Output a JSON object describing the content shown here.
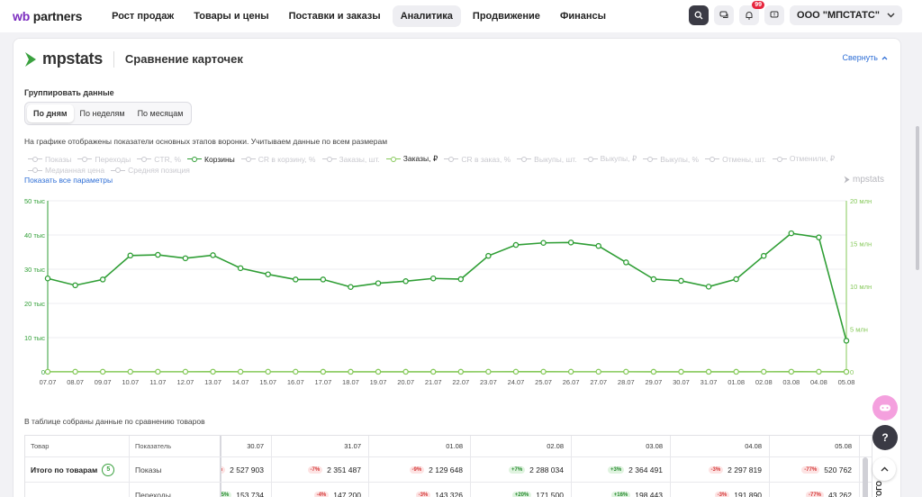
{
  "topnav": {
    "logo_wb": "wb",
    "logo_partners": "partners",
    "items": [
      "Рост продаж",
      "Товары и цены",
      "Поставки и заказы",
      "Аналитика",
      "Продвижение",
      "Финансы"
    ],
    "active_index": 3,
    "notifications_count": "99",
    "org_name": "ООО \"МПСТАТС\""
  },
  "card": {
    "brand": "mpstats",
    "title": "Сравнение карточек",
    "collapse_label": "Свернуть",
    "group_label": "Группировать данные",
    "group_options": [
      "По дням",
      "По неделям",
      "По месяцам"
    ],
    "group_active": 0,
    "info_text": "На графике отображены показатели основных этапов воронки. Учитываем данные по всем размерам",
    "show_all": "Показать все параметры",
    "watermark": "mpstats"
  },
  "legend": [
    {
      "label": "Показы",
      "state": "off"
    },
    {
      "label": "Переходы",
      "state": "off"
    },
    {
      "label": "CTR, %",
      "state": "off"
    },
    {
      "label": "Корзины",
      "state": "on-dark"
    },
    {
      "label": "CR в корзину, %",
      "state": "off"
    },
    {
      "label": "Заказы, шт.",
      "state": "off"
    },
    {
      "label": "Заказы, ₽",
      "state": "on-light"
    },
    {
      "label": "CR в заказ, %",
      "state": "off"
    },
    {
      "label": "Выкупы, шт.",
      "state": "off"
    },
    {
      "label": "Выкупы, ₽",
      "state": "off"
    },
    {
      "label": "Выкупы, %",
      "state": "off"
    },
    {
      "label": "Отмены, шт.",
      "state": "off"
    },
    {
      "label": "Отменили, ₽",
      "state": "off"
    },
    {
      "label": "Медианная цена",
      "state": "off"
    },
    {
      "label": "Средняя позиция",
      "state": "off"
    }
  ],
  "chart_data": {
    "type": "line",
    "x": [
      "07.07",
      "08.07",
      "09.07",
      "10.07",
      "11.07",
      "12.07",
      "13.07",
      "14.07",
      "15.07",
      "16.07",
      "17.07",
      "18.07",
      "19.07",
      "20.07",
      "21.07",
      "22.07",
      "23.07",
      "24.07",
      "25.07",
      "26.07",
      "27.07",
      "28.07",
      "29.07",
      "30.07",
      "31.07",
      "01.08",
      "02.08",
      "03.08",
      "04.08",
      "05.08"
    ],
    "series": [
      {
        "name": "Корзины",
        "axis": "left",
        "color": "#2f9e35",
        "values": [
          27300,
          25300,
          27000,
          34000,
          34200,
          33200,
          34100,
          30300,
          28500,
          27000,
          27000,
          24800,
          25900,
          26500,
          27300,
          27100,
          33900,
          37100,
          37700,
          37800,
          36800,
          32000,
          27100,
          26600,
          24900,
          27100,
          33900,
          40500,
          39300,
          9100
        ]
      },
      {
        "name": "Заказы, ₽",
        "axis": "right",
        "color": "#86c95a",
        "values": [
          14000,
          12100,
          12400,
          14100,
          13500,
          13300,
          14800,
          14400,
          13300,
          11900,
          11200,
          10700,
          11000,
          10900,
          11500,
          11500,
          12700,
          14600,
          14600,
          14200,
          13300,
          12800,
          10000,
          9500,
          7300,
          10000,
          12300,
          15400,
          13000,
          2900
        ]
      }
    ],
    "y_left": {
      "min": 0,
      "max": 50000,
      "ticks": [
        "0",
        "10 тыс",
        "20 тыс",
        "30 тыс",
        "40 тыс",
        "50 тыс"
      ]
    },
    "y_right": {
      "min": 0,
      "max": 20000000,
      "ticks": [
        "0",
        "5 млн",
        "10 млн",
        "15 млн",
        "20 млн"
      ]
    },
    "grid": true
  },
  "table": {
    "title": "В таблице собраны данные по сравнению товаров",
    "headers": {
      "product": "Товар",
      "metric": "Показатель",
      "dates": [
        "30.07",
        "31.07",
        "01.08",
        "02.08",
        "03.08",
        "04.08",
        "05.08"
      ]
    },
    "total_label": "Итого по товарам",
    "total_count": "5",
    "rows": [
      {
        "metric": "Показы",
        "lead": "%",
        "cells": [
          {
            "chip": "",
            "value": "2 527 903"
          },
          {
            "chip": "-7%",
            "sign": "neg",
            "value": "2 351 487"
          },
          {
            "chip": "-9%",
            "sign": "neg",
            "value": "2 129 648"
          },
          {
            "chip": "+7%",
            "sign": "pos",
            "value": "2 288 034"
          },
          {
            "chip": "+3%",
            "sign": "pos",
            "value": "2 364 491"
          },
          {
            "chip": "-3%",
            "sign": "neg",
            "value": "2 297 819"
          },
          {
            "chip": "-77%",
            "sign": "neg",
            "value": "520 762"
          }
        ]
      },
      {
        "metric": "Переходы",
        "lead": "+5%",
        "cells": [
          {
            "chip": "+5%",
            "sign": "pos",
            "value": "153 734"
          },
          {
            "chip": "-4%",
            "sign": "neg",
            "value": "147 200"
          },
          {
            "chip": "-3%",
            "sign": "neg",
            "value": "143 326"
          },
          {
            "chip": "+20%",
            "sign": "pos",
            "value": "171 500"
          },
          {
            "chip": "+16%",
            "sign": "pos",
            "value": "198 443"
          },
          {
            "chip": "-3%",
            "sign": "neg",
            "value": "191 890"
          },
          {
            "chip": "-77%",
            "sign": "neg",
            "value": "43 262"
          }
        ]
      }
    ]
  },
  "side": {
    "help": "?",
    "vertical_tag": "ИТОГО"
  }
}
